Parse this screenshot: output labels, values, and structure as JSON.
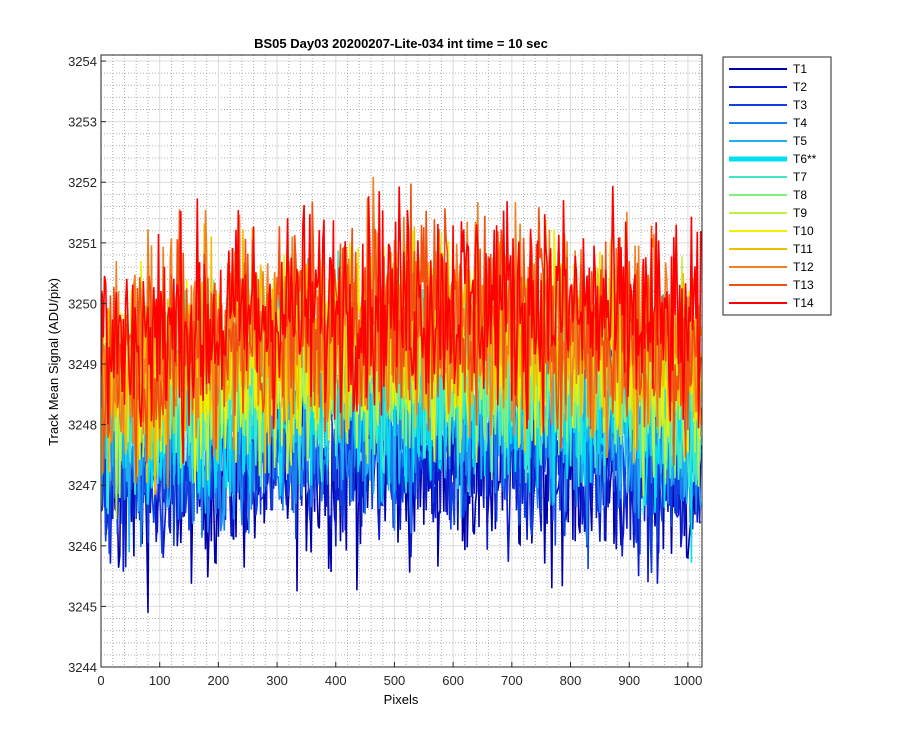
{
  "chart_data": {
    "type": "line",
    "title": "BS05 Day03 20200207-Lite-034 int time = 10 sec",
    "xlabel": "Pixels",
    "ylabel": "Track Mean Signal (ADU/pix)",
    "xlim": [
      0,
      1024
    ],
    "ylim": [
      3244,
      3254.1
    ],
    "x_ticks": [
      0,
      100,
      200,
      300,
      400,
      500,
      600,
      700,
      800,
      900,
      1000
    ],
    "y_ticks": [
      3244,
      3245,
      3246,
      3247,
      3248,
      3249,
      3250,
      3251,
      3252,
      3253,
      3254
    ],
    "grid": "on (major and minor)",
    "legend_placement": "outside right, top",
    "series": [
      {
        "name": "T1",
        "color": "#0000aa",
        "mean": [
          3246.9,
          3247.2,
          3247.4,
          3247.3,
          3247.0
        ],
        "spread": 1.1,
        "highlight": false
      },
      {
        "name": "T2",
        "color": "#0a1acc",
        "mean": [
          3247.0,
          3247.3,
          3247.5,
          3247.4,
          3247.1
        ],
        "spread": 1.0,
        "highlight": false
      },
      {
        "name": "T3",
        "color": "#1040e0",
        "mean": [
          3247.2,
          3247.5,
          3247.7,
          3247.6,
          3247.3
        ],
        "spread": 1.0,
        "highlight": false
      },
      {
        "name": "T4",
        "color": "#1a80f0",
        "mean": [
          3247.5,
          3247.8,
          3248.0,
          3247.9,
          3247.6
        ],
        "spread": 1.0,
        "highlight": false
      },
      {
        "name": "T5",
        "color": "#20b0f0",
        "mean": [
          3247.8,
          3248.1,
          3248.3,
          3248.2,
          3247.9
        ],
        "spread": 1.0,
        "highlight": false
      },
      {
        "name": "T6**",
        "color": "#00e0f0",
        "mean": [
          3248.0,
          3248.3,
          3248.5,
          3248.4,
          3248.1
        ],
        "spread": 1.1,
        "highlight": true
      },
      {
        "name": "T7",
        "color": "#40e8c8",
        "mean": [
          3248.2,
          3248.6,
          3248.8,
          3248.7,
          3248.3
        ],
        "spread": 1.0,
        "highlight": false
      },
      {
        "name": "T8",
        "color": "#80f080",
        "mean": [
          3248.4,
          3248.8,
          3249.0,
          3248.9,
          3248.5
        ],
        "spread": 1.0,
        "highlight": false
      },
      {
        "name": "T9",
        "color": "#c0f040",
        "mean": [
          3248.6,
          3249.0,
          3249.3,
          3249.2,
          3248.7
        ],
        "spread": 1.1,
        "highlight": false
      },
      {
        "name": "T10",
        "color": "#f0f000",
        "mean": [
          3248.7,
          3249.2,
          3249.5,
          3249.4,
          3248.9
        ],
        "spread": 1.1,
        "highlight": false
      },
      {
        "name": "T11",
        "color": "#f0c000",
        "mean": [
          3248.8,
          3249.3,
          3249.6,
          3249.5,
          3249.0
        ],
        "spread": 1.1,
        "highlight": false
      },
      {
        "name": "T12",
        "color": "#f08020",
        "mean": [
          3249.0,
          3249.5,
          3249.8,
          3249.7,
          3249.2
        ],
        "spread": 1.2,
        "highlight": false
      },
      {
        "name": "T13",
        "color": "#f05010",
        "mean": [
          3249.1,
          3249.6,
          3249.9,
          3249.8,
          3249.3
        ],
        "spread": 1.2,
        "highlight": false
      },
      {
        "name": "T14",
        "color": "#ff0000",
        "mean": [
          3249.3,
          3249.8,
          3250.1,
          3250.0,
          3249.5
        ],
        "spread": 1.2,
        "highlight": false
      }
    ]
  }
}
